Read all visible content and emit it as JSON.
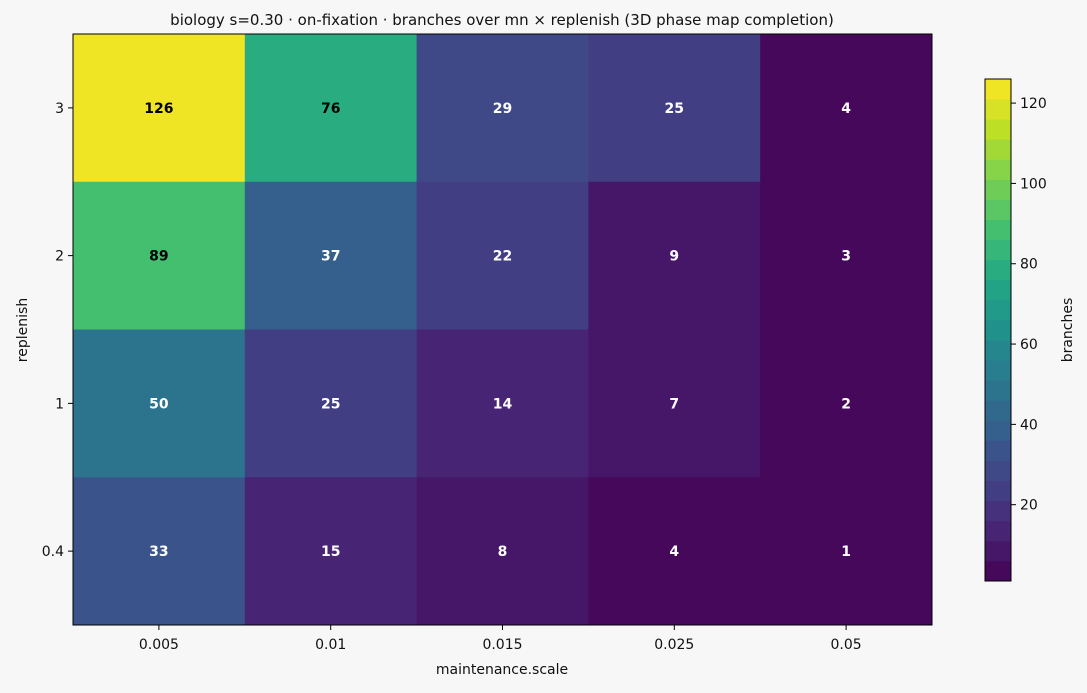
{
  "chart_data": {
    "type": "heatmap",
    "title": "biology s=0.30 · on-fixation · branches over mn × replenish (3D phase map completion)",
    "xlabel": "maintenance.scale",
    "ylabel": "replenish",
    "x_categories": [
      "0.005",
      "0.01",
      "0.015",
      "0.025",
      "0.05"
    ],
    "y_categories": [
      "3",
      "2",
      "1",
      "0.4"
    ],
    "values": [
      [
        126,
        76,
        29,
        25,
        4
      ],
      [
        89,
        37,
        22,
        9,
        3
      ],
      [
        50,
        25,
        14,
        7,
        2
      ],
      [
        33,
        15,
        8,
        4,
        1
      ]
    ],
    "colormap": "viridis",
    "colorbar": {
      "label": "branches",
      "range": [
        1,
        126
      ],
      "ticks": [
        "20",
        "40",
        "60",
        "80",
        "100",
        "120"
      ],
      "levels": 25
    }
  }
}
